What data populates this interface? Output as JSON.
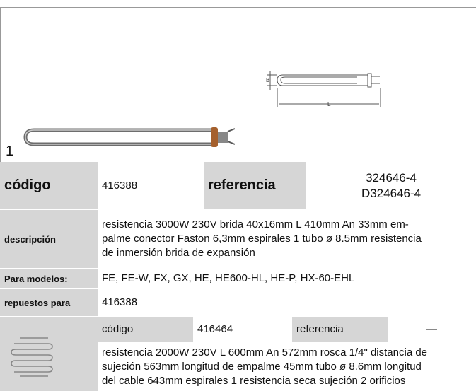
{
  "figure_label": "1",
  "product": {
    "codigo_label": "código",
    "codigo": "416388",
    "referencia_label": "referencia",
    "referencia": [
      "324646-4",
      "D324646-4"
    ],
    "descripcion_label": "descripción",
    "descripcion": [
      "resistencia  3000W 230V brida 40x16mm L 410mm An 33mm em-",
      "palme conector Faston 6,3mm espirales 1 tubo ø 8.5mm resistencia",
      "de inmersión brida de expansión"
    ],
    "modelos_label": "Para modelos:",
    "modelos": "FE, FE-W, FX, GX, HE, HE600-HL, HE-P, HX-60-EHL",
    "repuestos_label": "repuestos para",
    "repuestos": "416388"
  },
  "spare": {
    "codigo_label": "código",
    "codigo": "416464",
    "referencia_label": "referencia",
    "referencia": "—",
    "descripcion": [
      "resistencia  2000W 230V L 600mm An 572mm rosca 1/4\" distancia de",
      "sujeción 563mm longitud de empalme 45mm tubo ø 8.6mm longitud",
      "del cable  643mm espirales 1 resistencia seca sujeción 2 orificios"
    ]
  },
  "diagram": {
    "dim_b": "B",
    "dim_l": "L"
  }
}
